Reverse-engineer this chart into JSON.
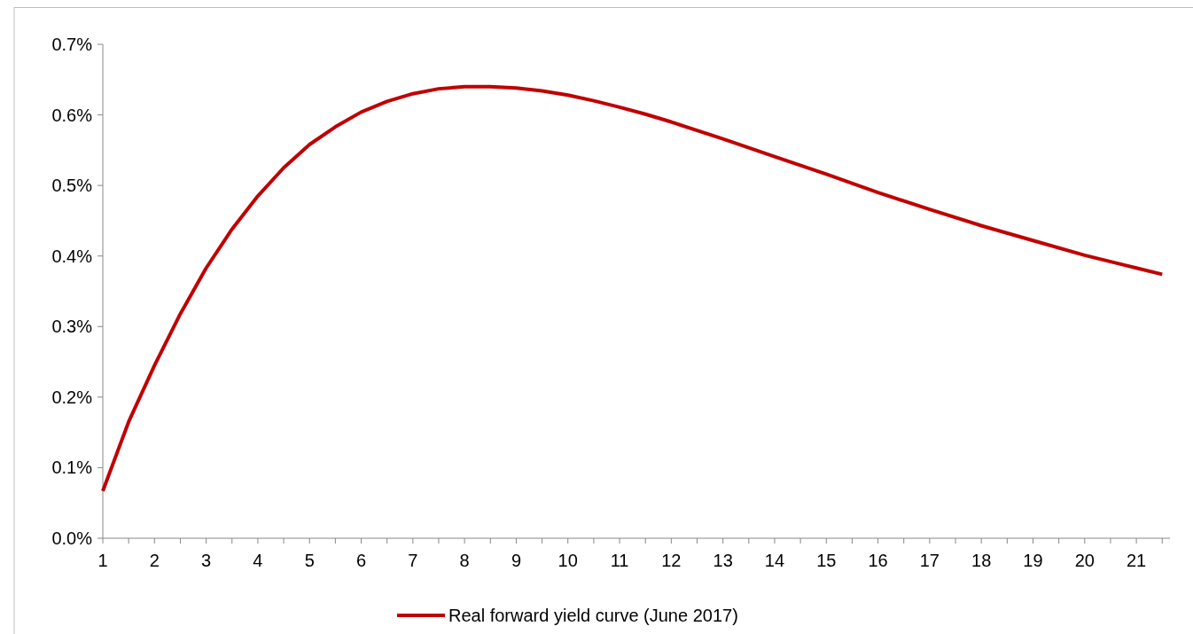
{
  "chart_data": {
    "type": "line",
    "x": [
      1,
      1.5,
      2,
      2.5,
      3,
      3.5,
      4,
      4.5,
      5,
      5.5,
      6,
      6.5,
      7,
      7.5,
      8,
      8.5,
      9,
      9.5,
      10,
      10.5,
      11,
      11.5,
      12,
      13,
      14,
      15,
      16,
      17,
      18,
      19,
      20,
      21,
      21.5
    ],
    "series": [
      {
        "name": "Real forward yield curve (June 2017)",
        "color": "#c00000",
        "values": [
          0.067,
          0.165,
          0.245,
          0.318,
          0.383,
          0.438,
          0.485,
          0.525,
          0.558,
          0.583,
          0.604,
          0.619,
          0.63,
          0.637,
          0.64,
          0.64,
          0.638,
          0.634,
          0.628,
          0.62,
          0.611,
          0.601,
          0.59,
          0.566,
          0.541,
          0.516,
          0.49,
          0.466,
          0.443,
          0.422,
          0.401,
          0.383,
          0.374
        ]
      }
    ],
    "xlim": [
      1,
      21.65
    ],
    "xticks": [
      1,
      {
        "value": 1.5,
        "label": null
      },
      2,
      {
        "value": 2.5,
        "label": null
      },
      3,
      {
        "value": 3.5,
        "label": null
      },
      4,
      {
        "value": 4.5,
        "label": null
      },
      5,
      {
        "value": 5.5,
        "label": null
      },
      6,
      {
        "value": 6.5,
        "label": null
      },
      7,
      {
        "value": 7.5,
        "label": null
      },
      8,
      {
        "value": 8.5,
        "label": null
      },
      9,
      {
        "value": 9.5,
        "label": null
      },
      10,
      {
        "value": 10.5,
        "label": null
      },
      11,
      {
        "value": 11.5,
        "label": null
      },
      12,
      {
        "value": 12.5,
        "label": null
      },
      13,
      {
        "value": 13.5,
        "label": null
      },
      14,
      {
        "value": 14.5,
        "label": null
      },
      15,
      {
        "value": 15.5,
        "label": null
      },
      16,
      {
        "value": 16.5,
        "label": null
      },
      17,
      {
        "value": 17.5,
        "label": null
      },
      18,
      {
        "value": 18.5,
        "label": null
      },
      19,
      {
        "value": 19.5,
        "label": null
      },
      20,
      {
        "value": 20.5,
        "label": null
      },
      21,
      {
        "value": 21.5,
        "label": null
      }
    ],
    "ylim": [
      0,
      0.7
    ],
    "yticks": [
      {
        "value": 0,
        "label": "0.0%"
      },
      {
        "value": 0.1,
        "label": "0.1%"
      },
      {
        "value": 0.2,
        "label": "0.2%"
      },
      {
        "value": 0.3,
        "label": "0.3%"
      },
      {
        "value": 0.4,
        "label": "0.4%"
      },
      {
        "value": 0.5,
        "label": "0.5%"
      },
      {
        "value": 0.6,
        "label": "0.6%"
      },
      {
        "value": 0.7,
        "label": "0.7%"
      }
    ],
    "grid": false,
    "legend": "bottom",
    "marker": "none",
    "line_style": "solid"
  }
}
